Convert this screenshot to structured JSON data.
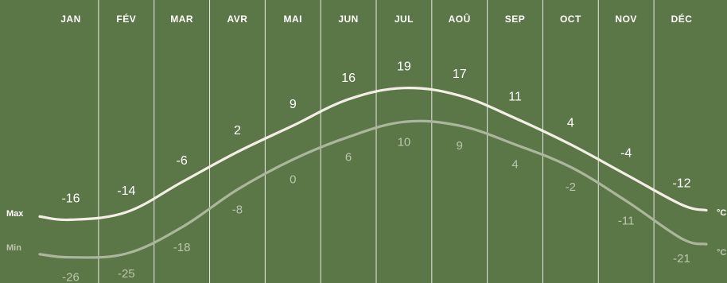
{
  "chart_data": {
    "type": "line",
    "categories": [
      "JAN",
      "FÉV",
      "MAR",
      "AVR",
      "MAI",
      "JUN",
      "JUL",
      "AOÛ",
      "SEP",
      "OCT",
      "NOV",
      "DÉC"
    ],
    "series": [
      {
        "name": "Max",
        "values": [
          -16,
          -14,
          -6,
          2,
          9,
          16,
          19,
          17,
          11,
          4,
          -4,
          -12
        ],
        "color": "#f3efe6"
      },
      {
        "name": "Min",
        "values": [
          -26,
          -25,
          -18,
          -8,
          0,
          6,
          10,
          9,
          4,
          -2,
          -11,
          -21
        ],
        "color": "#aab79c"
      }
    ],
    "unit_label": "°C",
    "grid": true,
    "legend": "left"
  },
  "colors": {
    "background": "#5c7747",
    "gridline": "#ffffff",
    "min_text": "#b9c6ad"
  }
}
